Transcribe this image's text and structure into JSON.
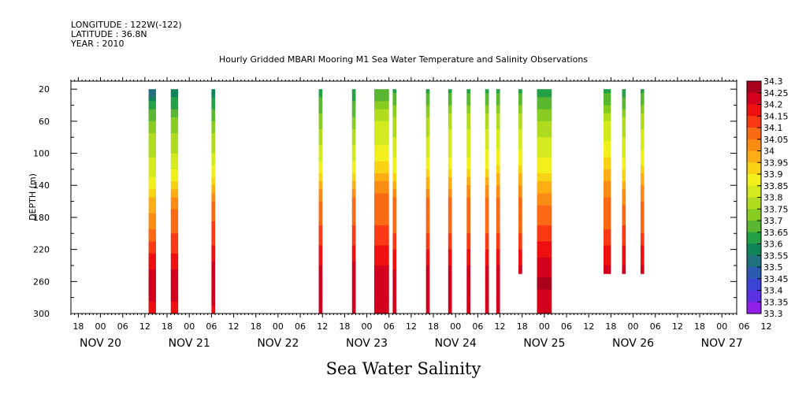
{
  "header": {
    "longitude": "LONGITUDE : 122W(-122)",
    "latitude": "LATITUDE : 36.8N",
    "year": "YEAR : 2010"
  },
  "chart_data": {
    "type": "heatmap",
    "title": "Hourly Gridded MBARI Mooring M1 Sea Water Temperature and Salinity Observations",
    "subtitle": "Sea Water Salinity",
    "ylabel": "DEPTH (m)",
    "ylim": [
      300,
      10
    ],
    "y_ticks": [
      "20",
      "60",
      "100",
      "140",
      "180",
      "220",
      "260",
      "300"
    ],
    "x_hour_labels": [
      "18",
      "00",
      "06",
      "12",
      "18",
      "00",
      "06",
      "12",
      "18",
      "00",
      "06",
      "12",
      "18",
      "00",
      "06",
      "12",
      "18",
      "00",
      "06",
      "12",
      "18",
      "00",
      "06",
      "12",
      "18",
      "00",
      "06",
      "12",
      "18",
      "00",
      "06",
      "12"
    ],
    "x_day_labels": [
      "NOV 20",
      "NOV 21",
      "NOV 22",
      "NOV 23",
      "NOV 24",
      "NOV 25",
      "NOV 26",
      "NOV 27"
    ],
    "x_range_hours": [
      -8,
      172
    ],
    "colorbar": {
      "levels": [
        "34.3",
        "34.25",
        "34.2",
        "34.15",
        "34.1",
        "34.05",
        "34",
        "33.95",
        "33.9",
        "33.85",
        "33.8",
        "33.75",
        "33.7",
        "33.65",
        "33.6",
        "33.55",
        "33.5",
        "33.45",
        "33.4",
        "33.35",
        "33.3"
      ],
      "colors": [
        "#a8001c",
        "#d2001c",
        "#ee1010",
        "#fa3a14",
        "#fa6a14",
        "#fa8c14",
        "#fcae14",
        "#f8d214",
        "#f2f01c",
        "#d2ea1e",
        "#b0dc20",
        "#88cc22",
        "#58b630",
        "#24a046",
        "#108458",
        "#207080",
        "#2c5aae",
        "#3a44d2",
        "#5a30e0",
        "#9020e8",
        "#d020f2"
      ]
    },
    "depth_levels": [
      20,
      40,
      60,
      80,
      100,
      120,
      140,
      160,
      180,
      200,
      220,
      240,
      260,
      280,
      300
    ],
    "profiles": [
      {
        "h": 13,
        "w": 2,
        "sal": [
          33.5,
          33.62,
          33.7,
          33.76,
          33.79,
          33.82,
          33.88,
          33.96,
          34.01,
          34.07,
          34.14,
          34.19,
          34.24,
          34.21,
          34.18
        ]
      },
      {
        "h": 19,
        "w": 2,
        "sal": [
          33.55,
          33.64,
          33.71,
          33.76,
          33.8,
          33.84,
          33.92,
          34.02,
          34.07,
          34.1,
          34.14,
          34.19,
          34.24,
          34.21,
          34.18
        ]
      },
      {
        "h": 30,
        "w": 1,
        "sal": [
          33.56,
          33.64,
          33.7,
          33.76,
          33.8,
          33.86,
          33.96,
          34.06,
          34.09,
          34.12,
          34.16,
          34.21,
          34.24,
          34.21,
          34.19
        ]
      },
      {
        "h": 59,
        "w": 1,
        "sal": [
          33.62,
          33.67,
          33.73,
          33.78,
          33.82,
          33.87,
          33.97,
          34.06,
          34.08,
          34.12,
          34.16,
          34.2,
          34.24,
          34.22,
          34.2
        ]
      },
      {
        "h": 68,
        "w": 1,
        "sal": [
          33.62,
          33.66,
          33.72,
          33.78,
          33.82,
          33.88,
          33.98,
          34.06,
          34.08,
          34.12,
          34.16,
          34.21,
          34.24,
          34.22,
          34.2
        ]
      },
      {
        "h": 74,
        "w": 4,
        "sal": [
          33.64,
          33.72,
          33.8,
          33.84,
          33.86,
          33.93,
          34.02,
          34.07,
          34.09,
          34.11,
          34.16,
          34.2,
          34.24,
          34.22,
          34.2
        ]
      },
      {
        "h": 79,
        "w": 1,
        "sal": [
          33.63,
          33.7,
          33.76,
          33.8,
          33.84,
          33.88,
          33.98,
          34.06,
          34.08,
          34.1,
          34.15,
          34.19,
          34.24,
          34.22,
          34.2
        ]
      },
      {
        "h": 88,
        "w": 1,
        "sal": [
          33.63,
          33.7,
          33.76,
          33.8,
          33.84,
          33.9,
          33.99,
          34.06,
          34.08,
          34.1,
          34.15,
          34.2,
          34.24,
          34.22,
          34.2
        ]
      },
      {
        "h": 94,
        "w": 1,
        "sal": [
          33.63,
          33.7,
          33.78,
          33.82,
          33.84,
          33.9,
          33.99,
          34.06,
          34.08,
          34.1,
          34.15,
          34.2,
          34.24,
          34.22,
          34.2
        ]
      },
      {
        "h": 99,
        "w": 1,
        "sal": [
          33.63,
          33.7,
          33.78,
          33.82,
          33.84,
          33.9,
          34.0,
          34.06,
          34.08,
          34.1,
          34.15,
          34.2,
          34.24,
          34.22,
          34.2
        ]
      },
      {
        "h": 104,
        "w": 1,
        "sal": [
          33.63,
          33.7,
          33.78,
          33.82,
          33.86,
          33.9,
          34.0,
          34.06,
          34.08,
          34.1,
          34.15,
          34.2,
          34.24,
          34.22,
          34.2
        ]
      },
      {
        "h": 107,
        "w": 1,
        "sal": [
          33.63,
          33.7,
          33.78,
          33.82,
          33.86,
          33.92,
          34.0,
          34.06,
          34.08,
          34.1,
          34.15,
          34.2,
          34.24,
          34.22,
          34.2
        ]
      },
      {
        "h": 113,
        "w": 1,
        "sal": [
          33.63,
          33.7,
          33.78,
          33.82,
          33.86,
          33.92,
          34.0,
          34.06,
          34.08,
          34.1,
          34.15,
          34.2,
          34.24,
          34.22,
          34.2
        ],
        "maxDepth": 250
      },
      {
        "h": 118,
        "w": 4,
        "sal": [
          33.62,
          33.68,
          33.75,
          33.8,
          33.84,
          33.88,
          33.96,
          34.04,
          34.08,
          34.12,
          34.17,
          34.22,
          34.26,
          34.24,
          34.22
        ]
      },
      {
        "h": 136,
        "w": 2,
        "sal": [
          33.62,
          33.7,
          33.8,
          33.84,
          33.88,
          33.94,
          34.03,
          34.06,
          34.08,
          34.11,
          34.16,
          34.2,
          34.24,
          34.22,
          34.2
        ],
        "maxDepth": 250
      },
      {
        "h": 141,
        "w": 1,
        "sal": [
          33.62,
          33.68,
          33.76,
          33.8,
          33.84,
          33.9,
          33.98,
          34.04,
          34.08,
          34.12,
          34.16,
          34.2,
          34.22,
          34.22,
          34.2
        ],
        "maxDepth": 250
      },
      {
        "h": 146,
        "w": 1,
        "sal": [
          33.62,
          33.7,
          33.78,
          33.82,
          33.86,
          33.92,
          34.0,
          34.05,
          34.08,
          34.1,
          34.16,
          34.2,
          34.22,
          34.22,
          34.2
        ],
        "maxDepth": 250
      }
    ]
  }
}
